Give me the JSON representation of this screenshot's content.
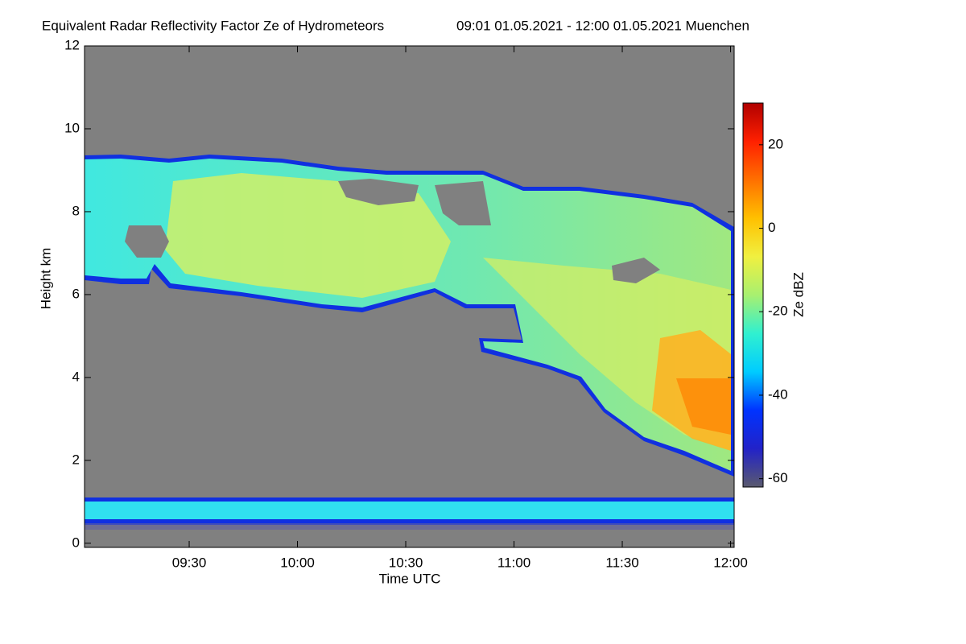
{
  "chart_data": {
    "type": "heatmap",
    "title": "Equivalent Radar Reflectivity Factor Ze of Hydrometeors",
    "subtitle": "09:01 01.05.2021 - 12:00 01.05.2021 Muenchen",
    "x_label": "Time UTC",
    "y_label": "Height km",
    "colorbar_label": "Ze dBZ",
    "xlim": [
      541,
      721
    ],
    "xticks": [
      {
        "value": 570,
        "label": "09:30"
      },
      {
        "value": 600,
        "label": "10:00"
      },
      {
        "value": 630,
        "label": "10:30"
      },
      {
        "value": 660,
        "label": "11:00"
      },
      {
        "value": 690,
        "label": "11:30"
      },
      {
        "value": 720,
        "label": "12:00"
      }
    ],
    "ylim": [
      -0.1,
      12
    ],
    "yticks": [
      0,
      2,
      4,
      6,
      8,
      10,
      12
    ],
    "clim": [
      -62,
      30
    ],
    "cticks": [
      -60,
      -40,
      -20,
      0,
      20
    ],
    "background": "#808080",
    "colormap": [
      "#5a5a6e",
      "#2222c8",
      "#0033ff",
      "#00ccff",
      "#30f0d0",
      "#a8f070",
      "#f0f040",
      "#ffc000",
      "#ff7000",
      "#ff2000",
      "#b00000"
    ]
  }
}
